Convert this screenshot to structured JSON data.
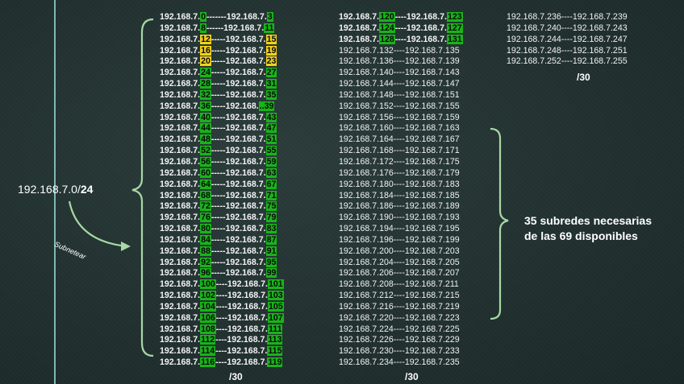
{
  "network": {
    "address": "192.168.7.0/",
    "prefix": "24"
  },
  "arrow_label": "Subnetear",
  "col1": {
    "prefix_label": "/30",
    "rows": [
      {
        "a": "192.168.7.",
        "a_end": "0",
        "sep": "-------",
        "b": "192.168.7.",
        "b_end": "3",
        "hl": "g"
      },
      {
        "a": "192.168.7.",
        "a_end": "8",
        "sep": "------",
        "b": "192.168.7.",
        "b_end": "11",
        "hl": "g"
      },
      {
        "a": "192.168.7.",
        "a_end": "12",
        "sep": "-----",
        "b": "192.168.7.",
        "b_end": "15",
        "hl": "y"
      },
      {
        "a": "192.168.7.",
        "a_end": "16",
        "sep": "-----",
        "b": "192.168.7.",
        "b_end": "19",
        "hl": "y"
      },
      {
        "a": "192.168.7.",
        "a_end": "20",
        "sep": "-----",
        "b": "192.168.7.",
        "b_end": "23",
        "hl": "y"
      },
      {
        "a": "192.168.7.",
        "a_end": "24",
        "sep": "-----",
        "b": "192.168.7.",
        "b_end": "27",
        "hl": "g"
      },
      {
        "a": "192.168.7.",
        "a_end": "28",
        "sep": "-----",
        "b": "192.168.7.",
        "b_end": "31",
        "hl": "g"
      },
      {
        "a": "192.168.7.",
        "a_end": "32",
        "sep": "-----",
        "b": "192.168.7.",
        "b_end": "35",
        "hl": "g"
      },
      {
        "a": "192.168.7.",
        "a_end": "36",
        "sep": "-----",
        "b": "192.168.",
        "b_end": "..39",
        "hl": "g"
      },
      {
        "a": "192.168.7.",
        "a_end": "40",
        "sep": "-----",
        "b": "192.168.7.",
        "b_end": "43",
        "hl": "g"
      },
      {
        "a": "192.168.7.",
        "a_end": "44",
        "sep": "-----",
        "b": "192.168.7.",
        "b_end": "47",
        "hl": "g"
      },
      {
        "a": "192.168.7.",
        "a_end": "48",
        "sep": "-----",
        "b": "192.168.7.",
        "b_end": "51",
        "hl": "g"
      },
      {
        "a": "192.168.7.",
        "a_end": "52",
        "sep": "-----",
        "b": "192.168.7.",
        "b_end": "55",
        "hl": "g"
      },
      {
        "a": "192.168.7.",
        "a_end": "56",
        "sep": "-----",
        "b": "192.168.7.",
        "b_end": "59",
        "hl": "g"
      },
      {
        "a": "192.168.7.",
        "a_end": "60",
        "sep": "-----",
        "b": "192.168.7.",
        "b_end": "63",
        "hl": "g"
      },
      {
        "a": "192.168.7.",
        "a_end": "64",
        "sep": "-----",
        "b": "192.168.7.",
        "b_end": "67",
        "hl": "g"
      },
      {
        "a": "192.168.7.",
        "a_end": "68",
        "sep": "-----",
        "b": "192.168.7.",
        "b_end": "71",
        "hl": "g"
      },
      {
        "a": "192.168.7.",
        "a_end": "72",
        "sep": "-----",
        "b": "192.168.7.",
        "b_end": "75",
        "hl": "g"
      },
      {
        "a": "192.168.7.",
        "a_end": "76",
        "sep": "-----",
        "b": "192.168.7.",
        "b_end": "79",
        "hl": "g"
      },
      {
        "a": "192.168.7.",
        "a_end": "80",
        "sep": "-----",
        "b": "192.168.7.",
        "b_end": "83",
        "hl": "g"
      },
      {
        "a": "192.168.7.",
        "a_end": "84",
        "sep": "-----",
        "b": "192.168.7.",
        "b_end": "87",
        "hl": "g"
      },
      {
        "a": "192.168.7.",
        "a_end": "88",
        "sep": "-----",
        "b": "192.168.7.",
        "b_end": "91",
        "hl": "g"
      },
      {
        "a": "192.168.7.",
        "a_end": "92",
        "sep": "-----",
        "b": "192.168.7.",
        "b_end": "95",
        "hl": "g"
      },
      {
        "a": "192.168.7.",
        "a_end": "96",
        "sep": "-----",
        "b": "192.168.7.",
        "b_end": "99",
        "hl": "g"
      },
      {
        "a": "192.168.7.",
        "a_end": "100",
        "sep": "----",
        "b": "192.168.7.",
        "b_end": "101",
        "hl": "g"
      },
      {
        "a": "192.168.7.",
        "a_end": "102",
        "sep": "----",
        "b": "192.168.7.",
        "b_end": "103",
        "hl": "g"
      },
      {
        "a": "192.168.7.",
        "a_end": "104",
        "sep": "----",
        "b": "192.168.7.",
        "b_end": "105",
        "hl": "g"
      },
      {
        "a": "192.168.7.",
        "a_end": "106",
        "sep": "----",
        "b": "192.168.7.",
        "b_end": "107",
        "hl": "g"
      },
      {
        "a": "192.168.7.",
        "a_end": "108",
        "sep": "----",
        "b": "192.168.7.",
        "b_end": "111",
        "hl": "g"
      },
      {
        "a": "192.168.7.",
        "a_end": "112",
        "sep": "----",
        "b": "192.168.7.",
        "b_end": "113",
        "hl": "g"
      },
      {
        "a": "192.168.7.",
        "a_end": "114",
        "sep": "----",
        "b": "192.168.7.",
        "b_end": "115",
        "hl": "g"
      },
      {
        "a": "192.168.7.",
        "a_end": "116",
        "sep": "----",
        "b": "192.168.7.",
        "b_end": "119",
        "hl": "g"
      }
    ]
  },
  "col2": {
    "prefix_label": "/30",
    "highlighted_rows": [
      {
        "a": "192.168.7.",
        "a_end": "120",
        "sep": "----",
        "b": "192.168.7.",
        "b_end": "123"
      },
      {
        "a": "192.168.7.",
        "a_end": "124",
        "sep": "----",
        "b": "192.168.7.",
        "b_end": "127"
      },
      {
        "a": "192.168.7.",
        "a_end": "128",
        "sep": "----",
        "b": "192.168.7.",
        "b_end": "131"
      }
    ],
    "rows": [
      "192.168.7.132----192.168.7.135",
      "192.168.7.136----192.168.7.139",
      "192.168.7.140----192.168.7.143",
      "192.168.7.144----192.168.7.147",
      "192.168.7.148----192.168.7.151",
      "192.168.7.152----192.168.7.155",
      "192.168.7.156----192.168.7.159",
      "192.168.7.160----192.168.7.163",
      "192.168.7.164----192.168.7.167",
      "192.168.7.168----192.168.7.171",
      "192.168.7.172----192.168.7.175",
      "192.168.7.176----192.168.7.179",
      "192.168.7.180----192.168.7.183",
      "192.168.7.184----192.168.7.185",
      "192.168.7.186----192.168.7.189",
      "192.168.7.190----192.168.7.193",
      "192.168.7.194----192.168.7.195",
      "192.168.7.196----192.168.7.199",
      "192.168.7.200----192.168.7.203",
      "192.168.7.204----192.168.7.205",
      "192.168.7.206----192.168.7.207",
      "192.168.7.208----192.168.7.211",
      "192.168.7.212----192.168.7.215",
      "192.168.7.216----192.168.7.219",
      "192.168.7.220----192.168.7.223",
      "192.168.7.224----192.168.7.225",
      "192.168.7.226----192.168.7.229",
      "192.168.7.230----192.168.7.233",
      "192.168.7.234----192.168.7.235"
    ]
  },
  "col3": {
    "prefix_label": "/30",
    "rows": [
      "192.168.7.236----192.168.7.239",
      "192.168.7.240----192.168.7.243",
      "192.168.7.244----192.168.7.247",
      "192.168.7.248----192.168.7.251",
      "192.168.7.252----192.168.7.255"
    ]
  },
  "note": "35 subredes necesarias de las 69 disponibles",
  "colors": {
    "highlight_green": "#19b31a",
    "highlight_yellow": "#f2d21a",
    "bracket": "#a8d8a4",
    "vertical_line": "#7fb7b5"
  }
}
